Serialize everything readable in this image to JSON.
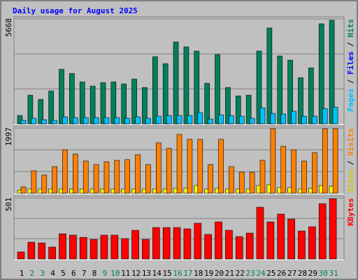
{
  "title": "Daily usage for August 2025",
  "chart_data": [
    {
      "type": "bar",
      "ylim": [
        0,
        5668
      ],
      "yticks": [
        5668
      ],
      "grid": true,
      "axis_label": [
        {
          "text": "Pages",
          "color": "#00c0ff"
        },
        {
          "text": " / ",
          "color": "#000000"
        },
        {
          "text": "Files",
          "color": "#0000ff"
        },
        {
          "text": " / ",
          "color": "#000000"
        },
        {
          "text": "Hits",
          "color": "#00805c"
        }
      ],
      "series": [
        {
          "color": "#00805c",
          "values": [
            453,
            1549,
            1323,
            1776,
            2947,
            2721,
            2267,
            2040,
            2229,
            2267,
            2154,
            2418,
            1965,
            3628,
            3250,
            4421,
            4157,
            3930,
            2192,
            3741,
            1965,
            1511,
            1549,
            3930,
            5177,
            3665,
            3439,
            2494,
            3023,
            5404,
            5593
          ]
        },
        {
          "color": "#00c0ff",
          "values": [
            189,
            302,
            227,
            189,
            378,
            340,
            340,
            340,
            340,
            340,
            302,
            378,
            302,
            416,
            453,
            453,
            453,
            605,
            264,
            491,
            453,
            416,
            302,
            869,
            567,
            529,
            680,
            416,
            416,
            831,
            907
          ]
        }
      ]
    },
    {
      "type": "bar",
      "ylim": [
        0,
        1997
      ],
      "yticks": [
        1997
      ],
      "grid": true,
      "axis_label": [
        {
          "text": "Sites",
          "color": "#d4c400"
        },
        {
          "text": " / ",
          "color": "#000000"
        },
        {
          "text": "Visits",
          "color": "#ff8000"
        }
      ],
      "series": [
        {
          "color": "#ffff00",
          "values": [
            86,
            129,
            129,
            129,
            129,
            129,
            129,
            129,
            129,
            129,
            129,
            129,
            129,
            129,
            129,
            150,
            150,
            236,
            129,
            150,
            129,
            129,
            129,
            236,
            258,
            172,
            172,
            129,
            150,
            236,
            215
          ]
        },
        {
          "color": "#ff8000",
          "values": [
            193,
            687,
            558,
            816,
            1331,
            1202,
            988,
            880,
            966,
            1009,
            1031,
            1181,
            880,
            1546,
            1374,
            1804,
            1653,
            1653,
            880,
            1653,
            816,
            644,
            644,
            1009,
            1975,
            1439,
            1331,
            988,
            1245,
            1975,
            1975
          ]
        }
      ]
    },
    {
      "type": "bar",
      "ylim": [
        0,
        501
      ],
      "yticks": [
        501
      ],
      "grid": true,
      "axis_label": [
        {
          "text": "KBytes",
          "color": "#ff0000"
        }
      ],
      "series": [
        {
          "color": "#ff0000",
          "values": [
            58,
            138,
            132,
            98,
            207,
            196,
            178,
            161,
            196,
            196,
            167,
            236,
            161,
            259,
            259,
            259,
            248,
            294,
            202,
            305,
            236,
            184,
            213,
            426,
            305,
            369,
            328,
            230,
            265,
            455,
            495
          ]
        }
      ],
      "categories": [
        "1",
        "2",
        "3",
        "4",
        "5",
        "6",
        "7",
        "8",
        "9",
        "10",
        "11",
        "12",
        "13",
        "14",
        "15",
        "16",
        "17",
        "18",
        "19",
        "20",
        "21",
        "22",
        "23",
        "24",
        "25",
        "26",
        "27",
        "28",
        "29",
        "30",
        "31"
      ],
      "category_colors": [
        "#000000",
        "#00805c",
        "#00805c",
        "#000000",
        "#000000",
        "#000000",
        "#000000",
        "#000000",
        "#00805c",
        "#00805c",
        "#000000",
        "#000000",
        "#000000",
        "#000000",
        "#000000",
        "#00805c",
        "#00805c",
        "#000000",
        "#000000",
        "#000000",
        "#000000",
        "#000000",
        "#00805c",
        "#00805c",
        "#000000",
        "#000000",
        "#000000",
        "#000000",
        "#000000",
        "#00805c",
        "#00805c"
      ]
    }
  ]
}
